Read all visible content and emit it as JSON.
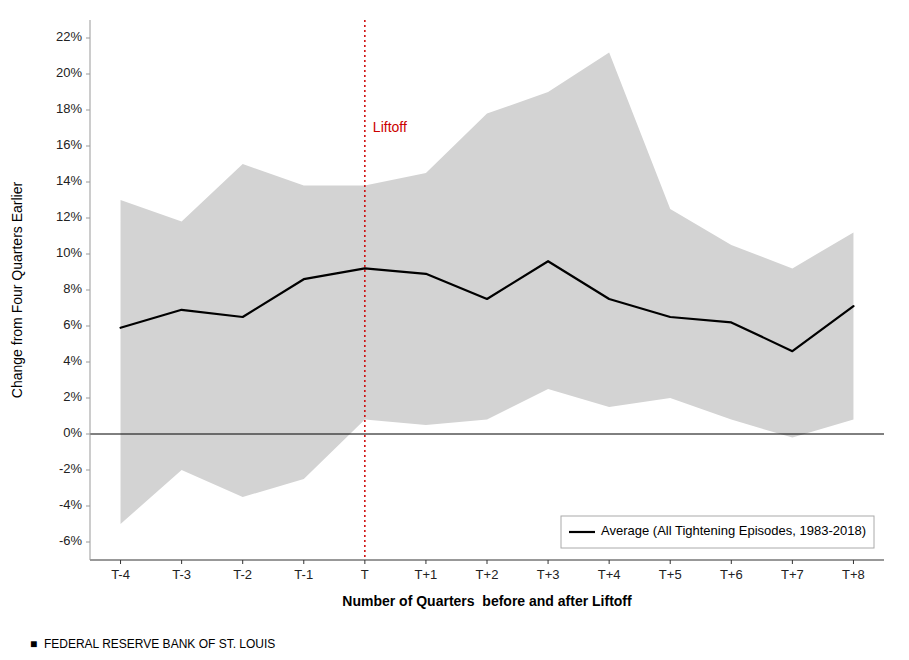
{
  "chart_data": {
    "type": "line",
    "x_label": "Number of Quarters  before and after Liftoff",
    "y_label": "Change from Four Quarters Earlier",
    "x": [
      0,
      1,
      2,
      3,
      4,
      5,
      6,
      7,
      8,
      9,
      10,
      11,
      12
    ],
    "series": [
      {
        "name": "Average (All Tightening Episodes, 1983-2018)",
        "color": "#000000",
        "values": [
          5.9,
          6.9,
          6.5,
          8.6,
          9.2,
          8.9,
          7.5,
          9.6,
          7.5,
          6.5,
          6.2,
          4.6,
          7.1
        ]
      }
    ],
    "band": {
      "color": "#d3d3d3",
      "upper": [
        13.0,
        11.8,
        15.0,
        13.8,
        13.8,
        14.5,
        17.8,
        19.0,
        21.2,
        12.5,
        10.5,
        9.2,
        11.2
      ],
      "lower": [
        -5.0,
        -2.0,
        -3.5,
        -2.5,
        0.8,
        0.5,
        0.8,
        2.5,
        1.5,
        2.0,
        0.8,
        -0.2,
        0.8
      ]
    },
    "annotations": [
      {
        "type": "vline",
        "x": 4,
        "label": "Liftoff",
        "color": "#cc0000"
      },
      {
        "type": "hline",
        "y": 0,
        "color": "#000000"
      }
    ],
    "xlim": [
      -0.5,
      12.5
    ],
    "xticks": [
      {
        "value": 0,
        "label": "T-4"
      },
      {
        "value": 1,
        "label": "T-3"
      },
      {
        "value": 2,
        "label": "T-2"
      },
      {
        "value": 3,
        "label": "T-1"
      },
      {
        "value": 4,
        "label": "T"
      },
      {
        "value": 5,
        "label": "T+1"
      },
      {
        "value": 6,
        "label": "T+2"
      },
      {
        "value": 7,
        "label": "T+3"
      },
      {
        "value": 8,
        "label": "T+4"
      },
      {
        "value": 9,
        "label": "T+5"
      },
      {
        "value": 10,
        "label": "T+6"
      },
      {
        "value": 11,
        "label": "T+7"
      },
      {
        "value": 12,
        "label": "T+8"
      }
    ],
    "ylim": [
      -7,
      23
    ],
    "yticks": [
      {
        "value": -6,
        "label": "-6%"
      },
      {
        "value": -4,
        "label": "-4%"
      },
      {
        "value": -2,
        "label": "-2%"
      },
      {
        "value": 0,
        "label": "0%"
      },
      {
        "value": 2,
        "label": "2%"
      },
      {
        "value": 4,
        "label": "4%"
      },
      {
        "value": 6,
        "label": "6%"
      },
      {
        "value": 8,
        "label": "8%"
      },
      {
        "value": 10,
        "label": "10%"
      },
      {
        "value": 12,
        "label": "12%"
      },
      {
        "value": 14,
        "label": "14%"
      },
      {
        "value": 16,
        "label": "16%"
      },
      {
        "value": 18,
        "label": "18%"
      },
      {
        "value": 20,
        "label": "20%"
      },
      {
        "value": 22,
        "label": "22%"
      }
    ],
    "grid": false,
    "legend": "lower right",
    "footer": "■  FEDERAL RESERVE BANK OF ST. LOUIS"
  }
}
